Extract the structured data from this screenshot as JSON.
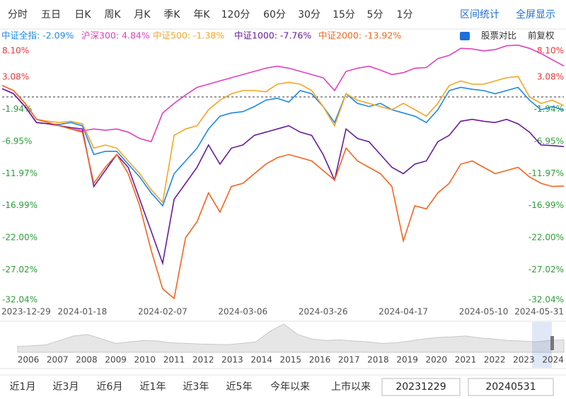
{
  "toolbar": {
    "tabs": [
      "分时",
      "五日",
      "日K",
      "周K",
      "月K",
      "季K",
      "年K",
      "120分",
      "60分",
      "30分",
      "15分",
      "5分",
      "1分"
    ],
    "actions": [
      "区间统计",
      "全屏显示"
    ]
  },
  "legend_right": [
    "股票对比",
    "前复权"
  ],
  "chart_data": {
    "type": "line",
    "categories": [
      "2023-12-29",
      null,
      null,
      null,
      null,
      null,
      null,
      "2024-01-18",
      null,
      null,
      null,
      null,
      null,
      null,
      "2024-02-07",
      null,
      null,
      null,
      null,
      null,
      null,
      "2024-03-06",
      null,
      null,
      null,
      null,
      null,
      null,
      "2024-03-26",
      null,
      null,
      null,
      null,
      null,
      null,
      "2024-04-17",
      null,
      null,
      null,
      null,
      null,
      null,
      "2024-05-10",
      null,
      null,
      null,
      null,
      null,
      null,
      "2024-05-31"
    ],
    "ylim": [
      -32.4,
      8.3
    ],
    "yticks": [
      {
        "value": 8.1,
        "label": "8.10%"
      },
      {
        "value": 3.08,
        "label": "3.08%"
      },
      {
        "value": -1.94,
        "label": "-1.94%"
      },
      {
        "value": -6.95,
        "label": "-6.95%"
      },
      {
        "value": -11.97,
        "label": "-11.97%"
      },
      {
        "value": -16.99,
        "label": "-16.99%"
      },
      {
        "value": -22.0,
        "label": "-22.00%"
      },
      {
        "value": -27.02,
        "label": "-27.02%"
      },
      {
        "value": -32.04,
        "label": "-32.04%"
      }
    ],
    "series": [
      {
        "name": "中证全指: -2.09%",
        "color": "#1e88e5",
        "values": [
          1.3,
          0.5,
          -1.5,
          -4.0,
          -4.2,
          -4.3,
          -4.0,
          -4.5,
          -9.0,
          -8.5,
          -8.5,
          -10.5,
          -12.5,
          -15.0,
          -17.0,
          -12.0,
          -10.0,
          -8.0,
          -5.0,
          -3.0,
          -2.5,
          -2.3,
          -1.5,
          -0.5,
          -0.2,
          -0.8,
          1.0,
          0.5,
          -1.5,
          -4.0,
          0.5,
          -1.0,
          -1.5,
          -1.0,
          -2.0,
          -2.5,
          -3.0,
          -4.0,
          -2.0,
          1.0,
          1.5,
          1.2,
          1.0,
          0.5,
          1.0,
          1.5,
          -0.5,
          -2.0,
          -1.5,
          -2.09
        ]
      },
      {
        "name": "沪深300: 4.84%",
        "color": "#e040c0",
        "values": [
          1.3,
          0.5,
          -1.5,
          -4.0,
          -4.2,
          -4.5,
          -5.0,
          -5.3,
          -5.0,
          -5.2,
          -5.0,
          -5.5,
          -6.5,
          -7.0,
          -2.5,
          -1.0,
          0.3,
          1.5,
          2.0,
          2.5,
          3.0,
          3.5,
          4.0,
          4.5,
          4.8,
          4.5,
          4.0,
          3.5,
          3.0,
          1.0,
          4.0,
          4.5,
          4.8,
          4.2,
          3.5,
          3.8,
          4.5,
          4.6,
          6.0,
          6.5,
          7.6,
          7.5,
          7.2,
          7.4,
          8.0,
          8.1,
          7.6,
          6.8,
          5.8,
          4.84
        ]
      },
      {
        "name": "中证500: -1.38%",
        "color": "#f5a623",
        "values": [
          1.8,
          1.0,
          -1.0,
          -3.5,
          -3.8,
          -4.0,
          -3.8,
          -4.2,
          -8.0,
          -7.5,
          -8.0,
          -10.0,
          -12.0,
          -14.5,
          -16.5,
          -6.0,
          -5.0,
          -4.5,
          -2.0,
          -0.5,
          0.5,
          1.0,
          1.0,
          0.8,
          2.0,
          2.3,
          2.0,
          1.0,
          -1.5,
          -4.5,
          0.5,
          -0.5,
          -1.0,
          -1.5,
          -2.0,
          -1.0,
          -2.0,
          -3.0,
          -1.0,
          1.8,
          2.5,
          2.0,
          2.0,
          2.5,
          3.0,
          3.2,
          0.0,
          -1.0,
          -0.5,
          -1.38
        ]
      },
      {
        "name": "中证1000: -7.76%",
        "color": "#6a1b9a",
        "values": [
          1.3,
          0.5,
          -1.5,
          -4.0,
          -4.2,
          -4.5,
          -4.8,
          -5.0,
          -14.0,
          -11.5,
          -9.0,
          -11.0,
          -16.0,
          -21.0,
          -26.0,
          -16.0,
          -13.5,
          -11.0,
          -7.5,
          -10.5,
          -8.0,
          -7.5,
          -6.0,
          -5.5,
          -5.0,
          -4.5,
          -5.5,
          -6.0,
          -9.0,
          -13.0,
          -5.0,
          -6.5,
          -7.0,
          -9.0,
          -11.0,
          -12.0,
          -10.5,
          -10.0,
          -7.0,
          -6.0,
          -3.8,
          -3.5,
          -3.8,
          -4.0,
          -3.5,
          -4.2,
          -5.5,
          -7.5,
          -7.6,
          -7.76
        ]
      },
      {
        "name": "中证2000: -13.92%",
        "color": "#f4651e",
        "values": [
          1.8,
          1.0,
          -1.0,
          -3.5,
          -4.0,
          -4.5,
          -5.0,
          -5.5,
          -13.5,
          -11.0,
          -9.0,
          -12.0,
          -17.0,
          -24.0,
          -30.0,
          -31.5,
          -22.0,
          -19.5,
          -15.0,
          -18.0,
          -14.0,
          -13.5,
          -12.0,
          -10.5,
          -9.5,
          -9.0,
          -9.5,
          -10.0,
          -11.5,
          -13.0,
          -8.0,
          -10.0,
          -11.0,
          -12.0,
          -14.0,
          -22.5,
          -17.0,
          -17.5,
          -15.0,
          -13.5,
          -10.5,
          -10.0,
          -11.0,
          -12.0,
          -11.5,
          -11.0,
          -12.5,
          -13.5,
          -14.0,
          -13.92
        ]
      }
    ]
  },
  "navigator": {
    "years": [
      "2006",
      "2007",
      "2008",
      "2009",
      "2010",
      "2011",
      "2012",
      "2013",
      "2014",
      "2015",
      "2016",
      "2017",
      "2018",
      "2019",
      "2020",
      "2021",
      "2022",
      "2023",
      "2024"
    ],
    "ylim": [
      0,
      100
    ],
    "values": [
      20,
      22,
      25,
      40,
      55,
      60,
      45,
      30,
      35,
      40,
      38,
      32,
      30,
      28,
      27,
      26,
      30,
      35,
      70,
      95,
      60,
      45,
      40,
      42,
      38,
      35,
      30,
      32,
      38,
      45,
      50,
      52,
      55,
      48,
      45,
      40,
      38,
      35,
      40,
      42
    ]
  },
  "range_buttons": [
    "近1月",
    "近3月",
    "近6月",
    "近1年",
    "近3年",
    "近5年",
    "今年以来",
    "上市以来"
  ],
  "date_inputs": [
    "20231229",
    "20240531"
  ]
}
